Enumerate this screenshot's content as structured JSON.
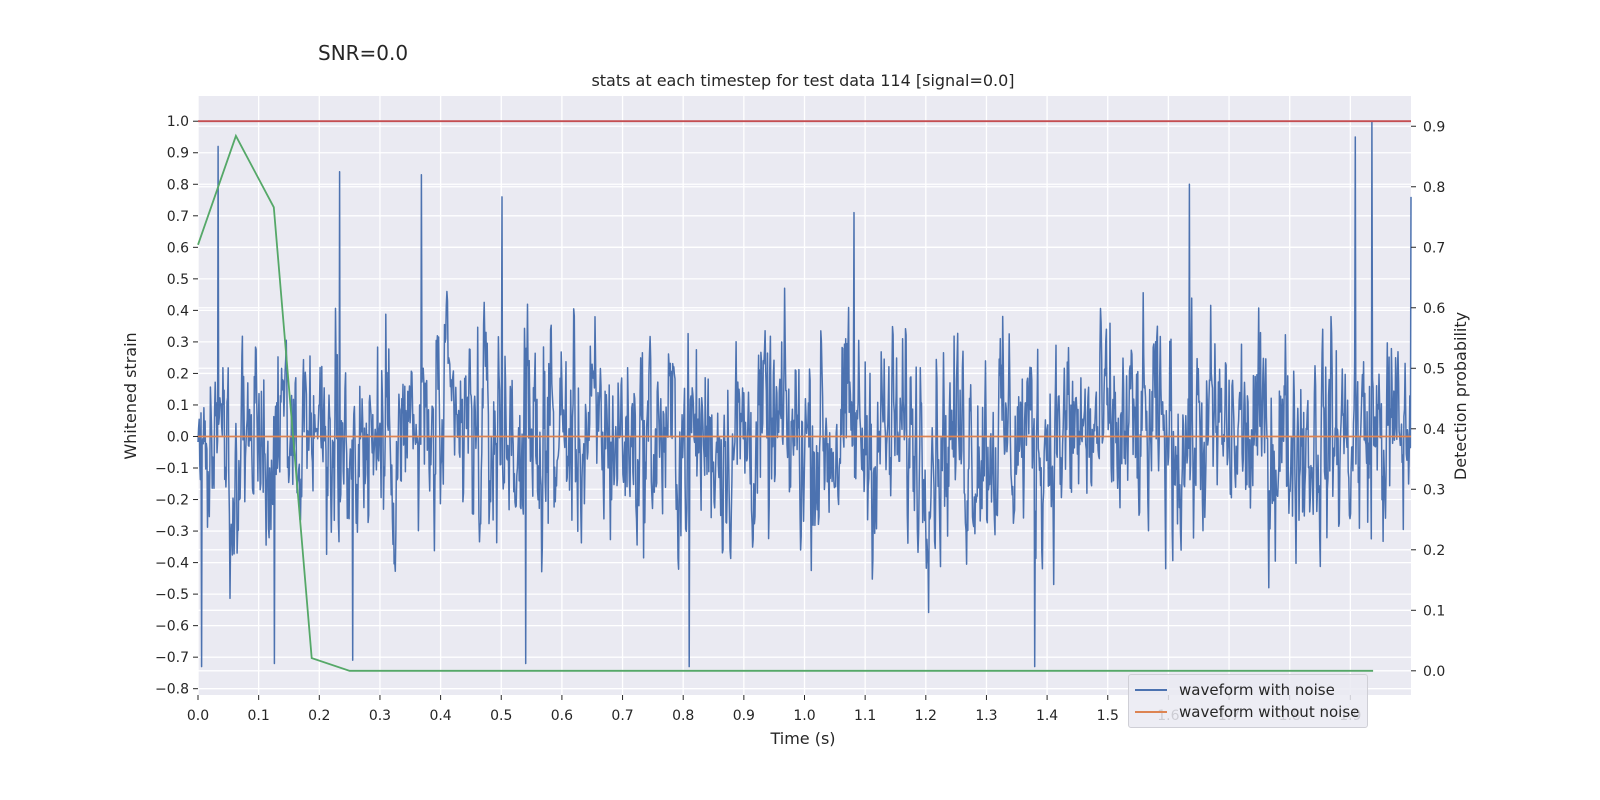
{
  "header": {
    "snr_label": "SNR=0.0"
  },
  "chart_data": {
    "type": "line",
    "title": "stats at each timestep for test data 114 [signal=0.0]",
    "xlabel": "Time (s)",
    "ylabel": "Whitened strain",
    "y2label": "Detection probability",
    "xlim": [
      0.0,
      2.0
    ],
    "ylim": [
      -0.82,
      1.08
    ],
    "y2lim": [
      -0.04,
      0.95
    ],
    "x_ticks": [
      0.0,
      0.1,
      0.2,
      0.3,
      0.4,
      0.5,
      0.6,
      0.7,
      0.8,
      0.9,
      1.0,
      1.1,
      1.2,
      1.3,
      1.4,
      1.5,
      1.6,
      1.7,
      1.8,
      1.9
    ],
    "x_tick_labels": [
      "0.0",
      "0.1",
      "0.2",
      "0.3",
      "0.4",
      "0.5",
      "0.6",
      "0.7",
      "0.8",
      "0.9",
      "1.0",
      "1.1",
      "1.2",
      "1.3",
      "1.4",
      "1.5",
      "1.6",
      "1.7",
      "1.8",
      "1.9"
    ],
    "y_ticks": [
      1.0,
      0.9,
      0.8,
      0.7,
      0.6,
      0.5,
      0.4,
      0.3,
      0.2,
      0.1,
      0.0,
      -0.1,
      -0.2,
      -0.3,
      -0.4,
      -0.5,
      -0.6,
      -0.7,
      -0.8
    ],
    "y_tick_labels": [
      "1.0",
      "0.9",
      "0.8",
      "0.7",
      "0.6",
      "0.5",
      "0.4",
      "0.3",
      "0.2",
      "0.1",
      "0.0",
      "−0.1",
      "−0.2",
      "−0.3",
      "−0.4",
      "−0.5",
      "−0.6",
      "−0.7",
      "−0.8"
    ],
    "y2_ticks": [
      0.9,
      0.8,
      0.7,
      0.6,
      0.5,
      0.4,
      0.3,
      0.2,
      0.1,
      0.0
    ],
    "y2_tick_labels": [
      "0.9",
      "0.8",
      "0.7",
      "0.6",
      "0.5",
      "0.4",
      "0.3",
      "0.2",
      "0.1",
      "0.0"
    ],
    "grid": true,
    "legend_position": "lower-right",
    "series": [
      {
        "name": "waveform with noise",
        "axis": "left",
        "color": "#4c72b0",
        "kind": "noise",
        "x_range": [
          0.0,
          2.0
        ],
        "value_range": [
          -0.73,
          1.0
        ],
        "n_points": 2048,
        "peaks": [
          {
            "x": 0.033,
            "y": 0.92
          },
          {
            "x": 0.234,
            "y": 0.84
          },
          {
            "x": 0.368,
            "y": 0.83
          },
          {
            "x": 0.501,
            "y": 0.76
          },
          {
            "x": 1.082,
            "y": 0.71
          },
          {
            "x": 1.635,
            "y": 0.8
          },
          {
            "x": 1.908,
            "y": 0.95
          },
          {
            "x": 1.936,
            "y": 1.0
          },
          {
            "x": 2.0,
            "y": 0.76
          }
        ],
        "troughs": [
          {
            "x": 0.006,
            "y": -0.73
          },
          {
            "x": 0.126,
            "y": -0.72
          },
          {
            "x": 0.255,
            "y": -0.71
          },
          {
            "x": 0.54,
            "y": -0.72
          },
          {
            "x": 0.81,
            "y": -0.73
          },
          {
            "x": 1.38,
            "y": -0.73
          }
        ]
      },
      {
        "name": "waveform without noise",
        "axis": "left",
        "color": "#dd8452",
        "x": [
          0.0,
          2.0
        ],
        "y": [
          0.0,
          0.0
        ]
      },
      {
        "name": "",
        "axis": "right",
        "color": "#55a868",
        "x": [
          0.0,
          0.0625,
          0.125,
          0.1875,
          0.25,
          0.3125,
          0.375,
          0.4375,
          0.5,
          0.5625,
          0.625,
          0.6875,
          0.75,
          0.8125,
          0.875,
          0.9375,
          1.0,
          1.0625,
          1.125,
          1.1875,
          1.25,
          1.3125,
          1.375,
          1.4375,
          1.5,
          1.5625,
          1.625,
          1.6875,
          1.75,
          1.8125,
          1.875,
          1.9375
        ],
        "y": [
          0.704,
          0.884,
          0.766,
          0.021,
          0.0,
          0.0,
          0.0,
          0.0,
          0.0,
          0.0,
          0.0,
          0.0,
          0.0,
          0.0,
          0.0,
          0.0,
          0.0,
          0.0,
          0.0,
          0.0,
          0.0,
          0.0,
          0.0,
          0.0,
          0.0,
          0.0,
          0.0,
          0.0,
          0.0,
          0.0,
          0.0,
          0.0
        ]
      },
      {
        "name": "",
        "axis": "left",
        "color": "#c44e52",
        "x": [
          0.0,
          2.0
        ],
        "y": [
          1.0,
          1.0
        ]
      }
    ]
  },
  "legend": {
    "items": [
      {
        "label": "waveform with noise",
        "color": "#4c72b0"
      },
      {
        "label": "waveform without noise",
        "color": "#dd8452"
      }
    ]
  }
}
